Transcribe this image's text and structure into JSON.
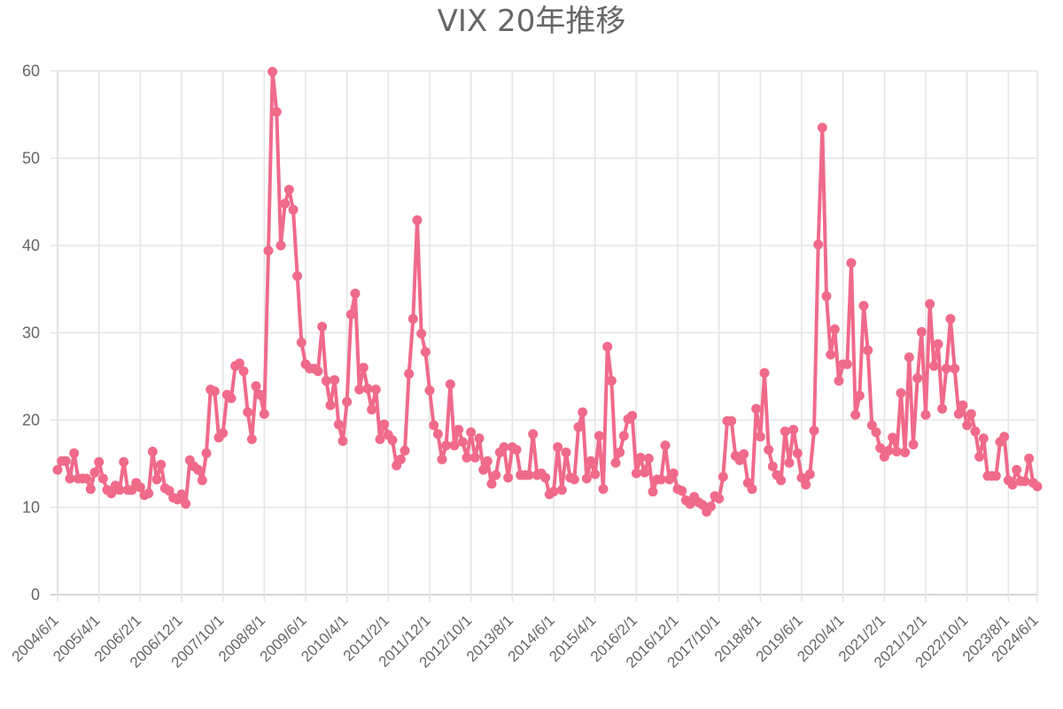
{
  "chart_data": {
    "type": "line",
    "title": "VIX 20年推移",
    "xlabel": "",
    "ylabel": "",
    "ylim": [
      0,
      60
    ],
    "yticks": [
      0,
      10,
      20,
      30,
      40,
      50,
      60
    ],
    "grid": true,
    "legend": "none",
    "color": "#f06a8a",
    "x_tick_labels": [
      "2004/6/1",
      "2005/4/1",
      "2006/2/1",
      "2006/12/1",
      "2007/10/1",
      "2008/8/1",
      "2009/6/1",
      "2010/4/1",
      "2011/2/1",
      "2011/12/1",
      "2012/10/1",
      "2013/8/1",
      "2014/6/1",
      "2015/4/1",
      "2016/2/1",
      "2016/12/1",
      "2017/10/1",
      "2018/8/1",
      "2019/6/1",
      "2020/4/1",
      "2021/2/1",
      "2021/12/1",
      "2022/10/1",
      "2023/8/1",
      "2024/6/1"
    ],
    "series": [
      {
        "name": "",
        "start": "2004/6/1",
        "frequency": "monthly",
        "values": [
          14.3,
          15.3,
          15.3,
          13.3,
          16.2,
          13.3,
          13.3,
          13.3,
          12.1,
          14.0,
          15.2,
          13.3,
          12.0,
          11.6,
          12.5,
          12.0,
          15.2,
          12.0,
          12.0,
          12.8,
          12.3,
          11.4,
          11.6,
          16.4,
          13.2,
          14.9,
          12.2,
          11.9,
          11.1,
          10.9,
          11.5,
          10.4,
          15.4,
          14.7,
          14.3,
          13.1,
          16.2,
          23.5,
          23.3,
          18.0,
          18.5,
          22.9,
          22.5,
          26.2,
          26.5,
          25.6,
          20.9,
          17.8,
          23.9,
          22.9,
          20.7,
          39.4,
          59.9,
          55.3,
          40.0,
          44.8,
          46.4,
          44.1,
          36.5,
          28.9,
          26.4,
          25.9,
          25.9,
          25.6,
          30.7,
          24.5,
          21.7,
          24.6,
          19.5,
          17.6,
          22.1,
          32.1,
          34.5,
          23.5,
          26.0,
          23.6,
          21.2,
          23.5,
          17.8,
          19.5,
          18.3,
          17.7,
          14.8,
          15.5,
          16.5,
          25.3,
          31.6,
          42.9,
          29.9,
          27.8,
          23.4,
          19.4,
          18.4,
          15.5,
          17.1,
          24.1,
          17.1,
          18.9,
          17.5,
          15.7,
          18.6,
          15.7,
          17.9,
          14.3,
          15.3,
          12.7,
          13.7,
          16.3,
          16.9,
          13.4,
          16.9,
          16.6,
          13.7,
          13.7,
          13.7,
          18.4,
          13.7,
          13.9,
          13.4,
          11.5,
          11.8,
          16.9,
          12.0,
          16.3,
          13.4,
          13.2,
          19.2,
          20.9,
          13.3,
          15.3,
          13.8,
          18.2,
          12.1,
          28.4,
          24.5,
          15.1,
          16.3,
          18.2,
          20.1,
          20.5,
          13.9,
          15.7,
          14.0,
          15.6,
          11.8,
          13.2,
          13.2,
          17.1,
          13.2,
          13.9,
          12.1,
          11.9,
          10.8,
          10.4,
          11.2,
          10.6,
          10.3,
          9.5,
          10.1,
          11.3,
          11.0,
          13.5,
          19.9,
          19.9,
          15.9,
          15.4,
          16.1,
          12.8,
          12.1,
          21.3,
          18.1,
          25.4,
          16.6,
          14.7,
          13.7,
          13.1,
          18.7,
          15.1,
          18.9,
          16.2,
          13.4,
          12.6,
          13.8,
          18.8,
          40.1,
          53.5,
          34.2,
          27.5,
          30.4,
          24.5,
          26.4,
          26.4,
          38.0,
          20.6,
          22.8,
          33.1,
          28.0,
          19.4,
          18.6,
          16.8,
          15.8,
          16.5,
          18.0,
          16.4,
          23.1,
          16.3,
          27.2,
          17.2,
          24.8,
          30.1,
          20.6,
          33.3,
          26.2,
          28.7,
          21.3,
          25.9,
          31.6,
          25.9,
          20.7,
          21.7,
          19.4,
          20.7,
          18.7,
          15.8,
          17.9,
          13.6,
          13.6,
          13.6,
          17.5,
          18.1,
          13.1,
          12.6,
          14.3,
          13.0,
          13.0,
          15.6,
          12.8,
          12.4
        ]
      }
    ]
  }
}
